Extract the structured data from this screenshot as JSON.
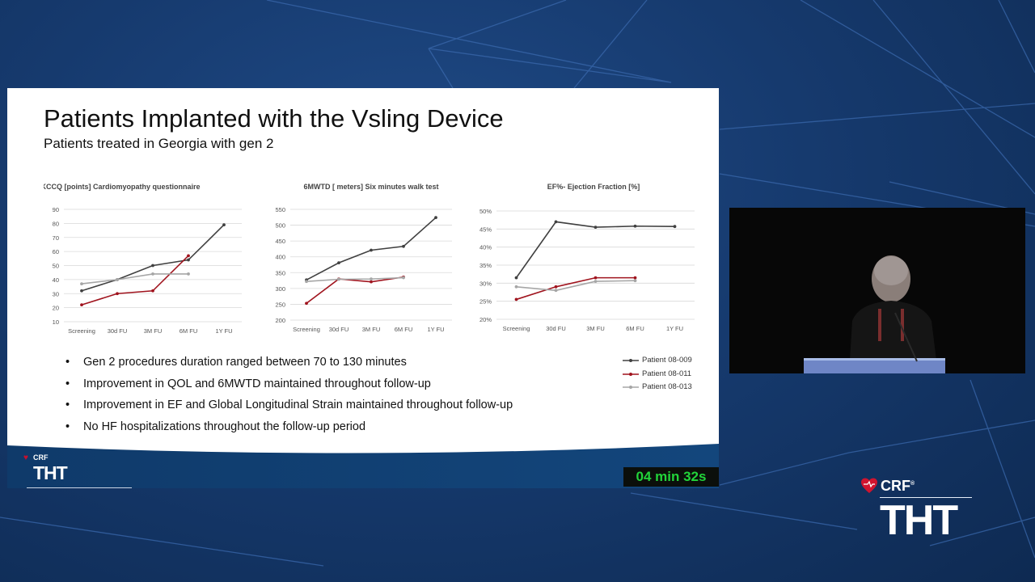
{
  "slide": {
    "title": "Patients Implanted with the Vsling Device",
    "subtitle": "Patients treated in Georgia with gen 2",
    "bullets": [
      "Gen 2 procedures duration ranged between 70 to 130 minutes",
      "Improvement in QOL and 6MWTD maintained throughout follow-up",
      "Improvement in EF and Global Longitudinal Strain maintained throughout follow-up",
      "No HF hospitalizations throughout the follow-up period"
    ],
    "bullet_glyph": "•",
    "legend": [
      {
        "name": "Patient 08-009",
        "color": "#404040"
      },
      {
        "name": "Patient 08-011",
        "color": "#a0141e"
      },
      {
        "name": "Patient 08-013",
        "color": "#a6a6a6"
      }
    ],
    "small_logo": {
      "crf": "CRF",
      "tht": "THT"
    }
  },
  "timer": "04 min 32s",
  "brand": {
    "crf": "CRF",
    "reg": "®",
    "tht": "THT"
  },
  "video": {
    "icon": "presenter-video-icon"
  },
  "chart_data": [
    {
      "type": "line",
      "title": "KCCQ [points] Cardiomyopathy questionnaire",
      "categories": [
        "Screening",
        "30d FU",
        "3M FU",
        "6M FU",
        "1Y FU"
      ],
      "ylim": [
        10,
        90
      ],
      "yticks": [
        10,
        20,
        30,
        40,
        50,
        60,
        70,
        80,
        90
      ],
      "ytick_labels": [
        "10",
        "20",
        "30",
        "40",
        "50",
        "60",
        "70",
        "80",
        "90"
      ],
      "grid": true,
      "series": [
        {
          "name": "Patient 08-009",
          "color": "#404040",
          "values": [
            32,
            40,
            50,
            54,
            79
          ]
        },
        {
          "name": "Patient 08-011",
          "color": "#a0141e",
          "values": [
            22,
            30,
            32,
            57,
            null
          ]
        },
        {
          "name": "Patient 08-013",
          "color": "#a6a6a6",
          "values": [
            37,
            40,
            44,
            44,
            null
          ]
        }
      ]
    },
    {
      "type": "line",
      "title": "6MWTD [ meters] Six minutes walk test",
      "categories": [
        "Screening",
        "30d FU",
        "3M FU",
        "6M FU",
        "1Y FU"
      ],
      "ylim": [
        200,
        550
      ],
      "yticks": [
        200,
        250,
        300,
        350,
        400,
        450,
        500,
        550
      ],
      "ytick_labels": [
        "200",
        "250",
        "300",
        "350",
        "400",
        "450",
        "500",
        "550"
      ],
      "grid": true,
      "series": [
        {
          "name": "Patient 08-009",
          "color": "#404040",
          "values": [
            327,
            381,
            421,
            433,
            524
          ]
        },
        {
          "name": "Patient 08-011",
          "color": "#a0141e",
          "values": [
            253,
            330,
            321,
            336,
            null
          ]
        },
        {
          "name": "Patient 08-013",
          "color": "#a6a6a6",
          "values": [
            322,
            329,
            330,
            334,
            null
          ]
        }
      ]
    },
    {
      "type": "line",
      "title": "EF%- Ejection Fraction [%]",
      "categories": [
        "Screening",
        "30d FU",
        "3M FU",
        "6M FU",
        "1Y FU"
      ],
      "ylim": [
        20,
        50
      ],
      "yticks": [
        20,
        25,
        30,
        35,
        40,
        45,
        50
      ],
      "ytick_labels": [
        "20%",
        "25%",
        "30%",
        "35%",
        "40%",
        "45%",
        "50%"
      ],
      "grid": true,
      "series": [
        {
          "name": "Patient 08-009",
          "color": "#404040",
          "values": [
            31.5,
            47,
            45.5,
            45.8,
            45.7
          ]
        },
        {
          "name": "Patient 08-011",
          "color": "#a0141e",
          "values": [
            25.5,
            29,
            31.5,
            31.5,
            null
          ]
        },
        {
          "name": "Patient 08-013",
          "color": "#a6a6a6",
          "values": [
            29,
            28,
            30.5,
            30.7,
            null
          ]
        }
      ]
    }
  ]
}
